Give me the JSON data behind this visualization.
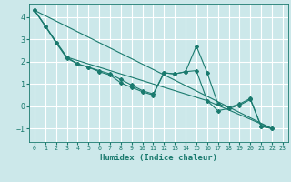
{
  "title": "",
  "xlabel": "Humidex (Indice chaleur)",
  "bg_color": "#cce8ea",
  "grid_color": "#ffffff",
  "line_color": "#1a7a6e",
  "xlim": [
    -0.5,
    23.5
  ],
  "ylim": [
    -1.6,
    4.6
  ],
  "yticks": [
    -1,
    0,
    1,
    2,
    3,
    4
  ],
  "xticks": [
    0,
    1,
    2,
    3,
    4,
    5,
    6,
    7,
    8,
    9,
    10,
    11,
    12,
    13,
    14,
    15,
    16,
    17,
    18,
    19,
    20,
    21,
    22,
    23
  ],
  "series1_x": [
    0,
    1,
    2,
    3,
    4,
    5,
    6,
    7,
    8,
    9,
    10,
    11,
    12,
    13,
    14,
    15,
    16,
    17,
    18,
    19,
    20,
    21,
    22
  ],
  "series1_y": [
    4.3,
    3.6,
    2.85,
    2.15,
    1.9,
    1.75,
    1.55,
    1.4,
    1.05,
    0.85,
    0.65,
    0.5,
    1.5,
    1.45,
    1.55,
    1.6,
    0.25,
    -0.2,
    -0.1,
    0.05,
    0.3,
    -0.9,
    -1.0
  ],
  "series2_x": [
    0,
    1,
    2,
    3,
    4,
    5,
    6,
    7,
    8,
    9,
    10,
    11,
    12,
    13,
    14,
    15,
    16,
    17,
    18,
    19,
    20,
    21,
    22
  ],
  "series2_y": [
    4.3,
    3.6,
    2.85,
    2.2,
    1.9,
    1.75,
    1.6,
    1.45,
    1.2,
    0.95,
    0.7,
    0.55,
    1.5,
    1.45,
    1.55,
    2.7,
    1.5,
    0.1,
    -0.05,
    0.1,
    0.35,
    -0.9,
    -1.0
  ],
  "line3_x": [
    0,
    22
  ],
  "line3_y": [
    4.3,
    -1.0
  ],
  "line4_x": [
    0,
    3,
    16,
    22
  ],
  "line4_y": [
    4.3,
    2.2,
    0.25,
    -1.0
  ]
}
